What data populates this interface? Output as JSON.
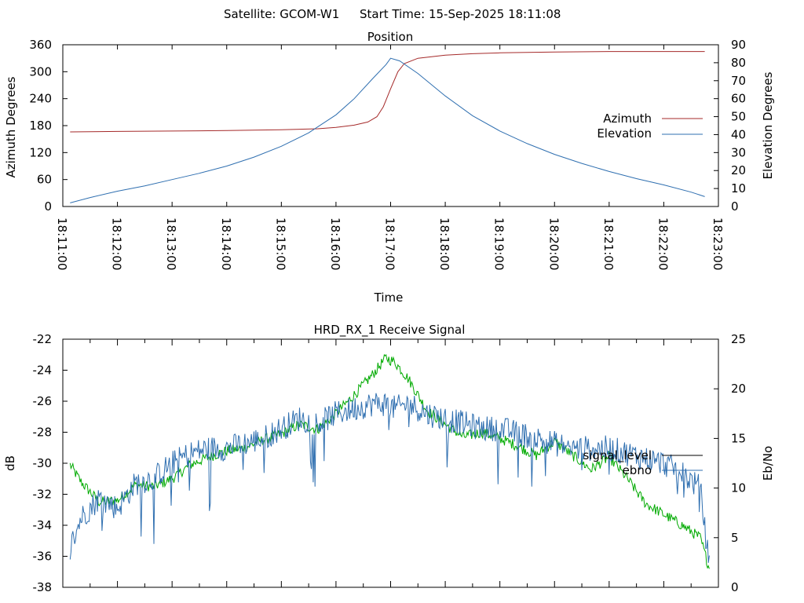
{
  "header": {
    "satellite_label": "Satellite: GCOM-W1",
    "start_time_label": "Start Time: 15-Sep-2025 18:11:08"
  },
  "colors": {
    "azimuth": "#a52a2a",
    "elevation": "#2f6fb0",
    "signal_level": "#000000",
    "ebno": "#2f6fb0",
    "green_trace": "#00aa00"
  },
  "chart_data": [
    {
      "type": "line",
      "title": "Position",
      "xlabel": "Time",
      "ylabel": "Azimuth Degrees",
      "y2label": "Elevation Degrees",
      "x_ticks": [
        "18:11:00",
        "18:12:00",
        "18:13:00",
        "18:14:00",
        "18:15:00",
        "18:16:00",
        "18:17:00",
        "18:18:00",
        "18:19:00",
        "18:20:00",
        "18:21:00",
        "18:22:00",
        "18:23:00"
      ],
      "xlim": [
        "18:11:00",
        "18:23:00"
      ],
      "ylim": [
        0,
        360
      ],
      "y_ticks": [
        0,
        60,
        120,
        180,
        240,
        300,
        360
      ],
      "y2lim": [
        0,
        90
      ],
      "y2_ticks": [
        0,
        10,
        20,
        30,
        40,
        50,
        60,
        70,
        80,
        90
      ],
      "legend_position": "right",
      "series": [
        {
          "name": "Azimuth",
          "axis": "y",
          "color_key": "azimuth",
          "x": [
            "18:11:08",
            "18:12:00",
            "18:13:00",
            "18:14:00",
            "18:15:00",
            "18:15:40",
            "18:16:00",
            "18:16:20",
            "18:16:35",
            "18:16:45",
            "18:16:52",
            "18:17:00",
            "18:17:08",
            "18:17:15",
            "18:17:30",
            "18:18:00",
            "18:18:30",
            "18:19:00",
            "18:20:00",
            "18:21:00",
            "18:22:00",
            "18:22:45"
          ],
          "values": [
            166,
            167,
            168,
            169,
            171,
            173,
            176,
            181,
            188,
            200,
            222,
            262,
            300,
            318,
            330,
            337,
            340,
            342,
            344,
            345,
            345,
            345
          ]
        },
        {
          "name": "Elevation",
          "axis": "y2",
          "color_key": "elevation",
          "x": [
            "18:11:08",
            "18:11:30",
            "18:12:00",
            "18:12:30",
            "18:13:00",
            "18:13:30",
            "18:14:00",
            "18:14:30",
            "18:15:00",
            "18:15:30",
            "18:16:00",
            "18:16:20",
            "18:16:40",
            "18:16:55",
            "18:17:00",
            "18:17:10",
            "18:17:30",
            "18:18:00",
            "18:18:30",
            "18:19:00",
            "18:19:30",
            "18:20:00",
            "18:20:30",
            "18:21:00",
            "18:21:30",
            "18:22:00",
            "18:22:30",
            "18:22:45"
          ],
          "values": [
            2,
            5,
            8.5,
            11.5,
            15,
            18.5,
            22.5,
            27.5,
            33.5,
            41,
            51,
            60,
            71,
            79,
            82.5,
            81,
            74,
            61.5,
            50.5,
            42,
            35,
            29,
            24,
            19.5,
            15.5,
            12,
            8,
            5.5
          ]
        }
      ]
    },
    {
      "type": "line",
      "title": "HRD_RX_1 Receive Signal",
      "ylabel": "dB",
      "y2label": "Eb/No",
      "ylim": [
        -38,
        -22
      ],
      "y_ticks": [
        -38,
        -36,
        -34,
        -32,
        -30,
        -28,
        -26,
        -24,
        -22
      ],
      "y2lim": [
        0,
        25
      ],
      "y2_ticks": [
        0,
        5,
        10,
        15,
        20,
        25
      ],
      "legend_position": "right",
      "series": [
        {
          "name": "signal_level",
          "axis": "y",
          "color_key": "green_trace",
          "x": [
            "18:11:08",
            "18:11:20",
            "18:11:40",
            "18:12:00",
            "18:12:20",
            "18:12:40",
            "18:13:00",
            "18:13:20",
            "18:13:40",
            "18:14:00",
            "18:14:20",
            "18:14:40",
            "18:15:00",
            "18:15:20",
            "18:15:40",
            "18:16:00",
            "18:16:20",
            "18:16:40",
            "18:16:55",
            "18:17:05",
            "18:17:20",
            "18:17:40",
            "18:18:00",
            "18:18:20",
            "18:18:40",
            "18:19:00",
            "18:19:20",
            "18:19:40",
            "18:20:00",
            "18:20:20",
            "18:20:40",
            "18:21:00",
            "18:21:20",
            "18:21:40",
            "18:22:00",
            "18:22:20",
            "18:22:40",
            "18:22:50"
          ],
          "values": [
            -30.1,
            -31.2,
            -32.5,
            -32.4,
            -31.4,
            -31.5,
            -31.0,
            -30.1,
            -29.6,
            -29.2,
            -29.0,
            -28.5,
            -28.1,
            -27.5,
            -27.8,
            -26.8,
            -25.6,
            -24.3,
            -23.2,
            -23.5,
            -24.6,
            -26.6,
            -27.5,
            -28.3,
            -28.0,
            -28.4,
            -28.9,
            -29.5,
            -28.6,
            -29.5,
            -30.4,
            -29.6,
            -31.0,
            -32.6,
            -33.3,
            -34.0,
            -34.8,
            -36.8
          ]
        },
        {
          "name": "ebno",
          "axis": "y2",
          "color_key": "ebno",
          "x": [
            "18:11:08",
            "18:11:20",
            "18:11:40",
            "18:12:00",
            "18:12:20",
            "18:12:40",
            "18:13:00",
            "18:13:20",
            "18:13:40",
            "18:14:00",
            "18:14:20",
            "18:14:40",
            "18:15:00",
            "18:15:20",
            "18:15:40",
            "18:16:00",
            "18:16:20",
            "18:16:40",
            "18:16:55",
            "18:17:05",
            "18:17:20",
            "18:17:40",
            "18:18:00",
            "18:18:20",
            "18:18:40",
            "18:19:00",
            "18:19:20",
            "18:19:40",
            "18:20:00",
            "18:20:20",
            "18:20:40",
            "18:21:00",
            "18:21:20",
            "18:21:40",
            "18:22:00",
            "18:22:20",
            "18:22:40",
            "18:22:50"
          ],
          "values": [
            4,
            7,
            9,
            8,
            10.5,
            11,
            12.5,
            13.5,
            14,
            14,
            14.5,
            15,
            16,
            17,
            16.5,
            17.5,
            18,
            18.5,
            18.5,
            18,
            18.5,
            17.5,
            17,
            16.5,
            16,
            16,
            15.5,
            15,
            14.5,
            14,
            14,
            14,
            13.5,
            13,
            12.5,
            11.5,
            10,
            2
          ]
        }
      ]
    }
  ]
}
